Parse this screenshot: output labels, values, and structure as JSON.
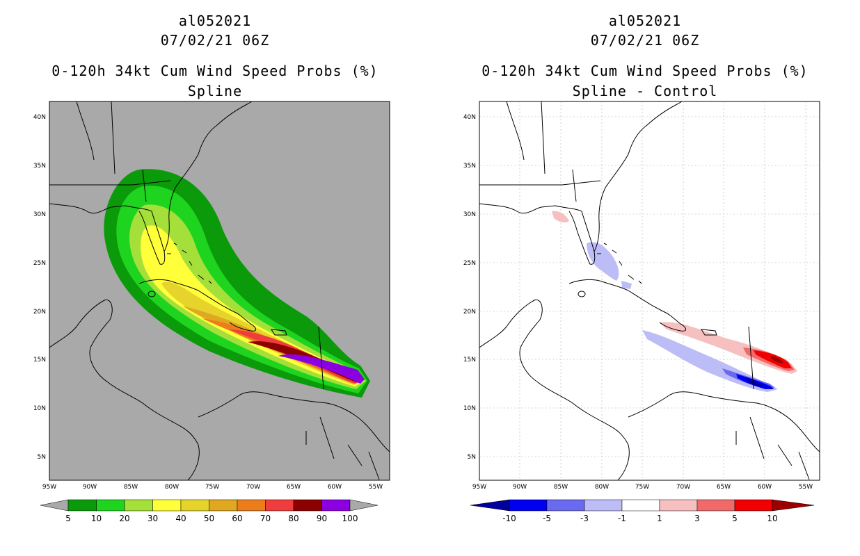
{
  "colors": {
    "map_bg_left": "#a9a9a9",
    "map_bg_right": "#ffffff",
    "prob_fill": [
      "#0a9a0a",
      "#1fd41f",
      "#a5e03a",
      "#ffff3a",
      "#e6d42c",
      "#e0a820",
      "#ec7c1c",
      "#f03c3c",
      "#8c0000",
      "#8a00e0"
    ],
    "diff_fill": [
      "#00009e",
      "#0000f0",
      "#6a6af0",
      "#bcbcf6",
      "#ffffff",
      "#f6c0c0",
      "#f06a6a",
      "#f00000",
      "#9e0000"
    ]
  },
  "left": {
    "storm_id": "al052021",
    "datetime": "07/02/21 06Z",
    "title": "0-120h 34kt Cum Wind Speed Probs (%)",
    "subtitle": "Spline",
    "colorbar": {
      "labels": [
        "5",
        "10",
        "20",
        "30",
        "40",
        "50",
        "60",
        "70",
        "80",
        "90",
        "100"
      ]
    }
  },
  "right": {
    "storm_id": "al052021",
    "datetime": "07/02/21 06Z",
    "title": "0-120h 34kt Cum Wind Speed Probs (%)",
    "subtitle": "Spline - Control",
    "colorbar": {
      "labels": [
        "-10",
        "-5",
        "-3",
        "-1",
        "1",
        "3",
        "5",
        "10"
      ]
    }
  },
  "axes": {
    "lon_labels": [
      "95W",
      "90W",
      "85W",
      "80W",
      "75W",
      "70W",
      "65W",
      "60W",
      "55W"
    ],
    "lat_labels": [
      "40N",
      "35N",
      "30N",
      "25N",
      "20N",
      "15N",
      "10N",
      "5N"
    ]
  }
}
